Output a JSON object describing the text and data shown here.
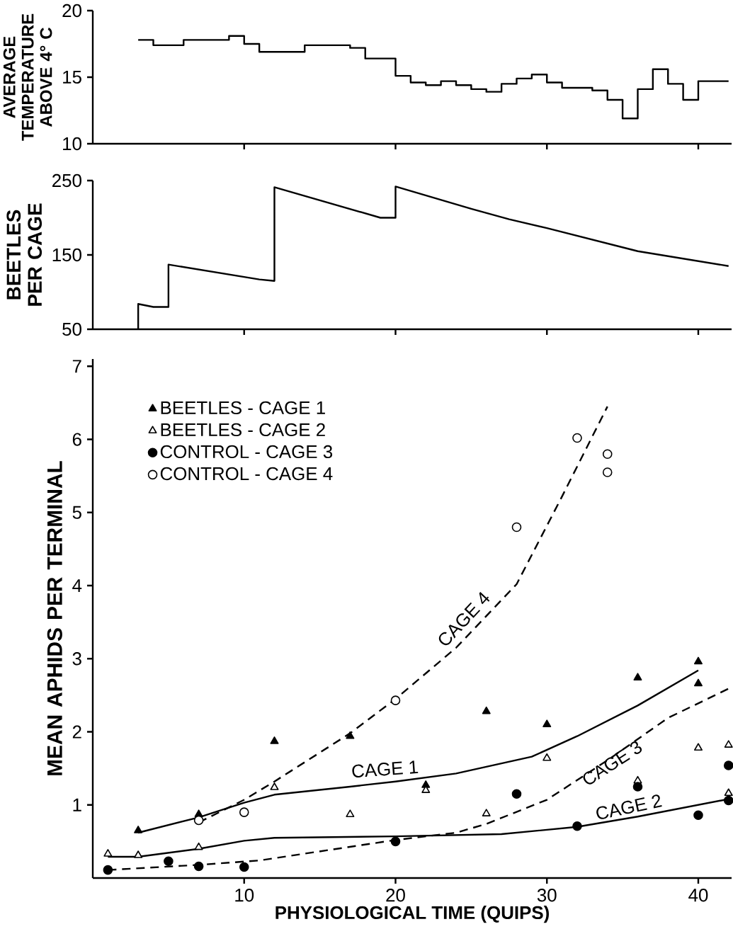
{
  "chart_data": [
    {
      "type": "step",
      "ylabel": "AVERAGE TEMPERATURE ABOVE 4° C",
      "xlim": [
        0,
        42.2
      ],
      "ylim": [
        10,
        20
      ],
      "xticks": [
        10,
        20,
        30,
        40
      ],
      "yticks": [
        10,
        15,
        20
      ],
      "tick_labels": "y",
      "color": "#000000",
      "x": [
        3,
        4,
        6,
        9,
        10,
        11,
        14,
        17,
        18,
        20,
        21,
        22,
        23,
        24,
        25,
        26,
        27,
        28,
        29,
        30,
        31,
        33,
        34,
        35,
        36,
        37,
        38,
        39,
        40,
        42
      ],
      "values": [
        17.8,
        17.4,
        17.8,
        18.1,
        17.5,
        16.9,
        17.4,
        17.2,
        16.4,
        15.1,
        14.6,
        14.4,
        14.7,
        14.4,
        14.1,
        13.9,
        14.5,
        14.9,
        15.2,
        14.6,
        14.2,
        14.0,
        13.3,
        11.9,
        14.1,
        15.6,
        14.5,
        13.3,
        14.7,
        14.7
      ]
    },
    {
      "type": "line",
      "ylabel": "BEETLES PER CAGE",
      "xlim": [
        0,
        42.2
      ],
      "ylim": [
        50,
        250
      ],
      "xticks": [
        10,
        20,
        30,
        40
      ],
      "yticks": [
        50,
        150,
        250
      ],
      "tick_labels": "y",
      "color": "#000000",
      "x": [
        3,
        3,
        4,
        5,
        5,
        11,
        12,
        12,
        19,
        20,
        20,
        25,
        27.5,
        30,
        36,
        42
      ],
      "values": [
        50,
        84,
        80,
        80,
        137,
        117,
        115,
        241,
        200,
        200,
        242,
        212,
        198,
        186,
        155,
        135
      ]
    },
    {
      "type": "scatter",
      "xlabel": "PHYSIOLOGICAL TIME (QUIPS)",
      "ylabel": "MEAN APHIDS PER TERMINAL",
      "xlim": [
        0,
        42.2
      ],
      "ylim": [
        0,
        7.1
      ],
      "xticks": [
        10,
        20,
        30,
        40
      ],
      "yticks": [
        1,
        2,
        3,
        4,
        5,
        6,
        7
      ],
      "legend": "top left",
      "annotations": [
        "CAGE 1",
        "CAGE 2",
        "CAGE 3",
        "CAGE 4"
      ],
      "series": [
        {
          "name": "BEETLES - CAGE 1",
          "color": "#000000",
          "marker": "triangle",
          "x": [
            3,
            7,
            12,
            17,
            22,
            26,
            30,
            36,
            40,
            40
          ],
          "values": [
            0.65,
            0.87,
            1.87,
            1.94,
            1.27,
            2.28,
            2.1,
            2.74,
            2.96,
            2.66
          ]
        },
        {
          "name": "BEETLES - CAGE 2",
          "color": "#000000",
          "marker": "triangle-open",
          "x": [
            1,
            3,
            7,
            12,
            17,
            22,
            26,
            30,
            36,
            40,
            42,
            42
          ],
          "values": [
            0.33,
            0.31,
            0.42,
            1.24,
            0.87,
            1.2,
            0.88,
            1.64,
            1.33,
            1.78,
            1.82,
            1.16
          ]
        },
        {
          "name": "CONTROL - CAGE 3",
          "color": "#000000",
          "marker": "circle",
          "x": [
            1,
            5,
            7,
            10,
            20,
            28,
            32,
            36,
            40,
            42,
            42
          ],
          "values": [
            0.11,
            0.23,
            0.16,
            0.15,
            0.5,
            1.15,
            0.71,
            1.25,
            0.86,
            1.54,
            1.06
          ]
        },
        {
          "name": "CONTROL - CAGE 4",
          "color": "#000000",
          "marker": "circle-open",
          "x": [
            7,
            10,
            20,
            28,
            32,
            34,
            34
          ],
          "values": [
            0.79,
            0.9,
            2.43,
            4.8,
            6.02,
            5.8,
            5.55
          ]
        },
        {
          "type": "line",
          "color": "#000000",
          "line_style": "solid",
          "x": [
            3,
            7,
            10,
            12,
            17,
            20,
            24,
            29,
            32,
            36,
            40
          ],
          "values": [
            0.62,
            0.83,
            1.03,
            1.14,
            1.25,
            1.32,
            1.43,
            1.66,
            1.94,
            2.36,
            2.84
          ]
        },
        {
          "type": "line",
          "color": "#000000",
          "line_style": "solid",
          "x": [
            1,
            3,
            7,
            10,
            12,
            20,
            27,
            32,
            36,
            42
          ],
          "values": [
            0.29,
            0.29,
            0.4,
            0.51,
            0.55,
            0.57,
            0.6,
            0.7,
            0.84,
            1.08
          ]
        },
        {
          "type": "line",
          "color": "#000000",
          "line_style": "dashed",
          "x": [
            1,
            7,
            11,
            20,
            24,
            26,
            30,
            34,
            38,
            42
          ],
          "values": [
            0.11,
            0.18,
            0.24,
            0.52,
            0.62,
            0.74,
            1.07,
            1.61,
            2.19,
            2.59
          ]
        },
        {
          "type": "line",
          "color": "#000000",
          "line_style": "dashed",
          "x": [
            7,
            10,
            12,
            17,
            20,
            24,
            28,
            31,
            34
          ],
          "values": [
            0.76,
            1.07,
            1.32,
            1.98,
            2.45,
            3.15,
            4.02,
            5.22,
            6.45
          ]
        }
      ]
    }
  ]
}
